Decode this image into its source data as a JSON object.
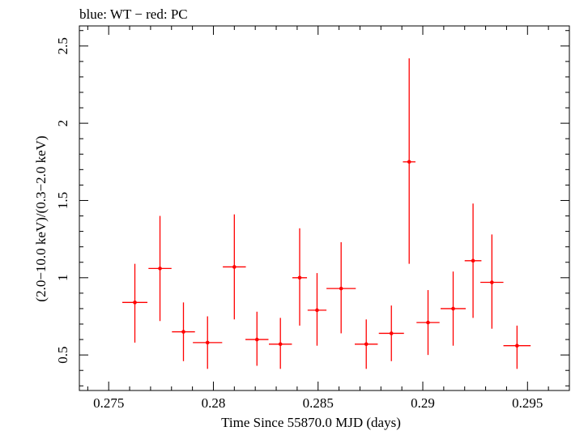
{
  "chart_data": {
    "type": "scatter",
    "title": "blue: WT − red: PC",
    "xlabel": "Time Since 55870.0 MJD (days)",
    "ylabel": "(2.0−10.0 keV)/(0.3−2.0 keV)",
    "xlim": [
      0.2736,
      0.297
    ],
    "ylim": [
      0.27,
      2.63
    ],
    "x_ticks": [
      0.275,
      0.28,
      0.285,
      0.29,
      0.295
    ],
    "x_tick_labels": [
      "0.275",
      "0.28",
      "0.285",
      "0.29",
      "0.295"
    ],
    "y_ticks": [
      0.5,
      1,
      1.5,
      2,
      2.5
    ],
    "y_tick_labels": [
      "0.5",
      "1",
      "1.5",
      "2",
      "2.5"
    ],
    "grid": false,
    "series": [
      {
        "color": "#ff0000",
        "points": [
          {
            "x": 0.27625,
            "y": 0.84,
            "xerr": 0.0006,
            "ylo": 0.58,
            "yhi": 1.09
          },
          {
            "x": 0.27745,
            "y": 1.06,
            "xerr": 0.00055,
            "ylo": 0.72,
            "yhi": 1.4
          },
          {
            "x": 0.27857,
            "y": 0.65,
            "xerr": 0.00055,
            "ylo": 0.46,
            "yhi": 0.84
          },
          {
            "x": 0.27972,
            "y": 0.58,
            "xerr": 0.0007,
            "ylo": 0.41,
            "yhi": 0.75
          },
          {
            "x": 0.281,
            "y": 1.07,
            "xerr": 0.00055,
            "ylo": 0.73,
            "yhi": 1.41
          },
          {
            "x": 0.28208,
            "y": 0.6,
            "xerr": 0.00055,
            "ylo": 0.43,
            "yhi": 0.78
          },
          {
            "x": 0.2832,
            "y": 0.57,
            "xerr": 0.00055,
            "ylo": 0.41,
            "yhi": 0.74
          },
          {
            "x": 0.28412,
            "y": 1.0,
            "xerr": 0.00035,
            "ylo": 0.69,
            "yhi": 1.32
          },
          {
            "x": 0.28495,
            "y": 0.79,
            "xerr": 0.00045,
            "ylo": 0.56,
            "yhi": 1.03
          },
          {
            "x": 0.2861,
            "y": 0.93,
            "xerr": 0.0007,
            "ylo": 0.64,
            "yhi": 1.23
          },
          {
            "x": 0.2873,
            "y": 0.57,
            "xerr": 0.00055,
            "ylo": 0.41,
            "yhi": 0.73
          },
          {
            "x": 0.2885,
            "y": 0.64,
            "xerr": 0.0006,
            "ylo": 0.46,
            "yhi": 0.82
          },
          {
            "x": 0.28935,
            "y": 1.75,
            "xerr": 0.0003,
            "ylo": 1.09,
            "yhi": 2.42
          },
          {
            "x": 0.29025,
            "y": 0.71,
            "xerr": 0.00055,
            "ylo": 0.5,
            "yhi": 0.92
          },
          {
            "x": 0.29145,
            "y": 0.8,
            "xerr": 0.0006,
            "ylo": 0.56,
            "yhi": 1.04
          },
          {
            "x": 0.2924,
            "y": 1.11,
            "xerr": 0.0004,
            "ylo": 0.74,
            "yhi": 1.48
          },
          {
            "x": 0.2933,
            "y": 0.97,
            "xerr": 0.00055,
            "ylo": 0.67,
            "yhi": 1.28
          },
          {
            "x": 0.2945,
            "y": 0.56,
            "xerr": 0.00065,
            "ylo": 0.41,
            "yhi": 0.69
          }
        ]
      }
    ]
  }
}
